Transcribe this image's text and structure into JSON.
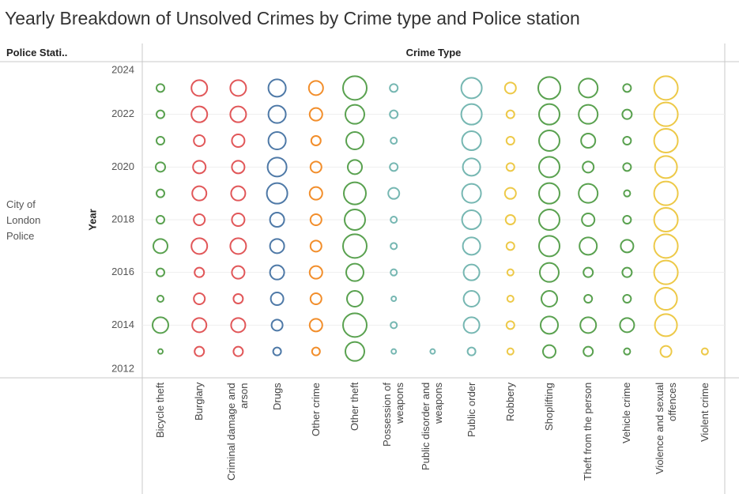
{
  "chart_data": {
    "type": "bubble",
    "title": "Yearly Breakdown of Unsolved Crimes by Crime type and Police station",
    "row_header": "Police Stati..",
    "column_header": "Crime Type",
    "row_label": "City of London Police",
    "y_label": "Year",
    "ylim": [
      2012,
      2024
    ],
    "yticks": [
      2012,
      2014,
      2016,
      2018,
      2020,
      2022,
      2024
    ],
    "grid": true,
    "years": [
      2023,
      2022,
      2021,
      2020,
      2019,
      2018,
      2017,
      2016,
      2015,
      2014,
      2013
    ],
    "categories": [
      "Bicycle theft",
      "Burglary",
      "Criminal damage and arson",
      "Drugs",
      "Other crime",
      "Other theft",
      "Possession of weapons",
      "Public disorder and weapons",
      "Public order",
      "Robbery",
      "Shoplifting",
      "Theft from the person",
      "Vehicle crime",
      "Violence and sexual offences",
      "Violent crime"
    ],
    "colors": [
      "#59a14f",
      "#e15759",
      "#e15759",
      "#4e79a7",
      "#f28e2b",
      "#59a14f",
      "#76b7b2",
      "#76b7b2",
      "#76b7b2",
      "#edc948",
      "#59a14f",
      "#59a14f",
      "#59a14f",
      "#edc948",
      "#edc948"
    ],
    "values": [
      [
        100,
        100,
        100,
        144,
        100,
        100,
        324,
        100,
        64,
        400,
        36
      ],
      [
        400,
        400,
        196,
        256,
        324,
        196,
        400,
        144,
        196,
        324,
        144
      ],
      [
        400,
        400,
        256,
        256,
        324,
        256,
        400,
        256,
        144,
        324,
        144
      ],
      [
        484,
        484,
        484,
        576,
        676,
        324,
        324,
        324,
        256,
        196,
        100
      ],
      [
        324,
        256,
        144,
        196,
        256,
        196,
        196,
        256,
        196,
        256,
        100
      ],
      [
        900,
        576,
        484,
        324,
        784,
        676,
        900,
        484,
        400,
        900,
        576
      ],
      [
        100,
        100,
        64,
        100,
        196,
        64,
        64,
        64,
        36,
        64,
        36
      ],
      [
        null,
        null,
        null,
        null,
        null,
        null,
        null,
        null,
        null,
        null,
        36
      ],
      [
        676,
        676,
        576,
        484,
        576,
        576,
        484,
        400,
        400,
        400,
        100
      ],
      [
        196,
        100,
        100,
        100,
        196,
        144,
        100,
        64,
        64,
        100,
        64
      ],
      [
        784,
        676,
        676,
        676,
        676,
        676,
        676,
        576,
        400,
        484,
        256
      ],
      [
        576,
        576,
        324,
        196,
        576,
        256,
        484,
        144,
        100,
        400,
        144
      ],
      [
        100,
        144,
        100,
        100,
        64,
        100,
        256,
        144,
        100,
        324,
        64
      ],
      [
        900,
        900,
        900,
        784,
        900,
        900,
        900,
        900,
        784,
        784,
        196
      ],
      [
        null,
        null,
        null,
        null,
        null,
        null,
        null,
        null,
        null,
        null,
        64
      ]
    ]
  }
}
